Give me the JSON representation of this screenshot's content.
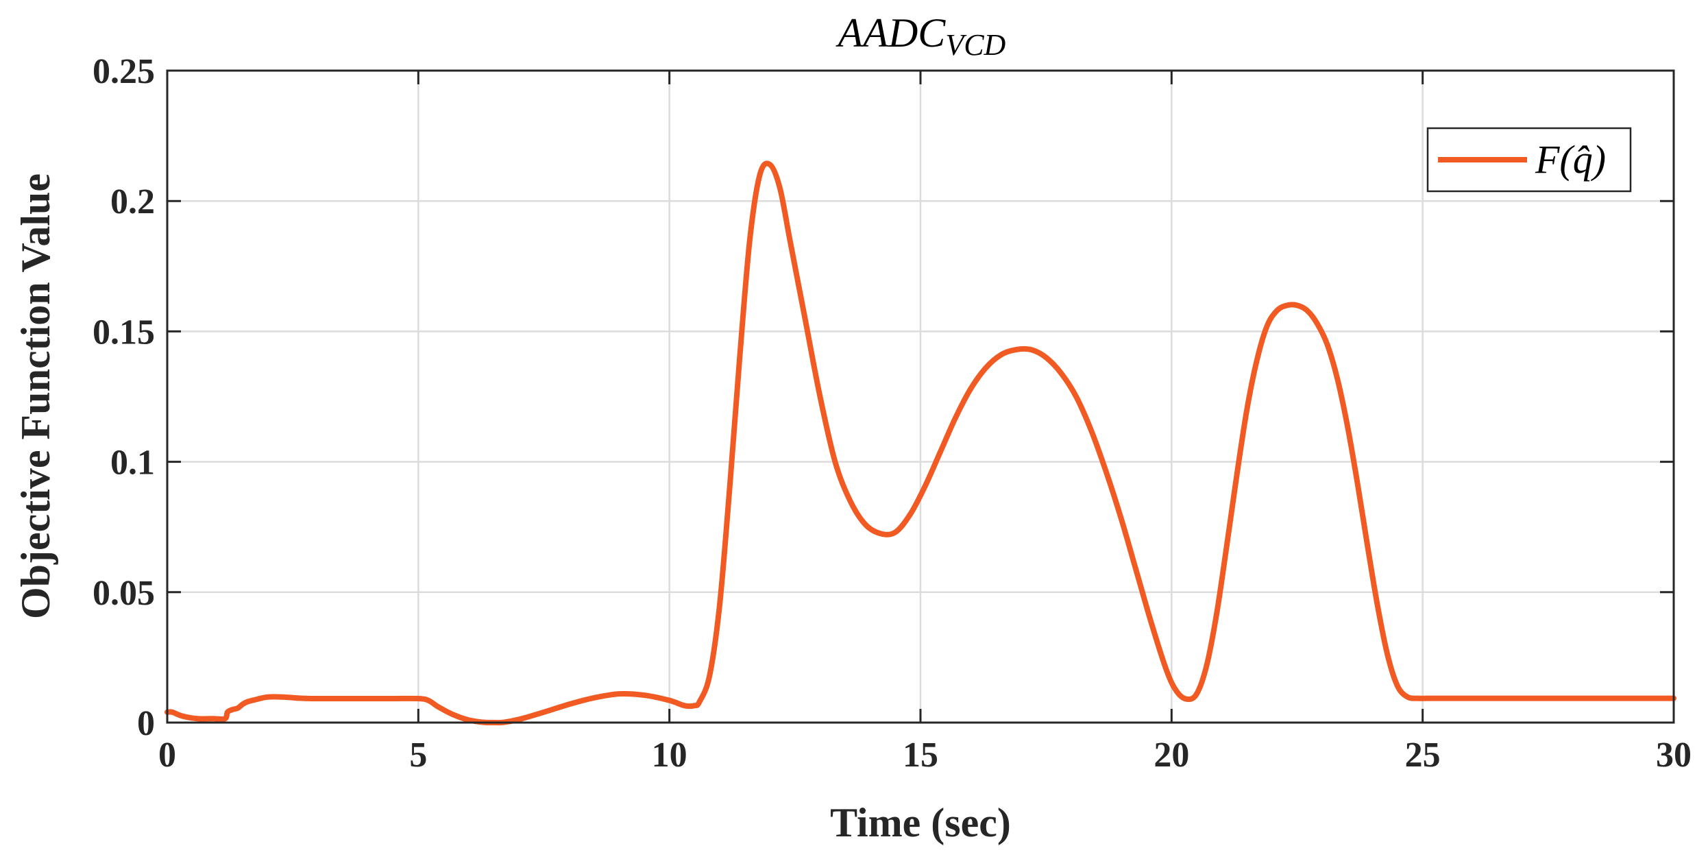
{
  "chart_data": {
    "type": "line",
    "title": "AADC",
    "title_subscript": "VCD",
    "xlabel": "Time (sec)",
    "ylabel": "Objective Function Value",
    "xlim": [
      0,
      30
    ],
    "ylim": [
      0,
      0.25
    ],
    "xticks": [
      0,
      5,
      10,
      15,
      20,
      25,
      30
    ],
    "yticks": [
      0,
      0.05,
      0.1,
      0.15,
      0.2,
      0.25
    ],
    "xtick_labels": [
      "0",
      "5",
      "10",
      "15",
      "20",
      "25",
      "30"
    ],
    "ytick_labels": [
      "0",
      "0.05",
      "0.1",
      "0.15",
      "0.2",
      "0.25"
    ],
    "grid": true,
    "legend_position": "top-right",
    "series": [
      {
        "name": "F(q̂)",
        "color": "#F15A22",
        "x": [
          0,
          0.1,
          0.3,
          0.6,
          0.9,
          1.15,
          1.2,
          1.3,
          1.4,
          1.5,
          1.6,
          1.8,
          2.0,
          2.3,
          2.7,
          3.0,
          3.5,
          4.0,
          4.5,
          5.0,
          5.2,
          5.4,
          5.7,
          6.0,
          6.3,
          6.5,
          6.7,
          7.0,
          7.5,
          8.0,
          8.5,
          9.0,
          9.5,
          10.0,
          10.3,
          10.5,
          10.6,
          10.8,
          11.0,
          11.2,
          11.4,
          11.6,
          11.8,
          12.0,
          12.2,
          12.4,
          12.7,
          13.0,
          13.3,
          13.6,
          13.9,
          14.2,
          14.5,
          14.8,
          15.1,
          15.4,
          15.7,
          16.0,
          16.3,
          16.6,
          16.9,
          17.2,
          17.5,
          17.8,
          18.1,
          18.4,
          18.7,
          19.0,
          19.3,
          19.6,
          19.9,
          20.1,
          20.3,
          20.5,
          20.7,
          20.9,
          21.1,
          21.3,
          21.5,
          21.7,
          21.9,
          22.1,
          22.3,
          22.5,
          22.7,
          22.9,
          23.1,
          23.3,
          23.5,
          23.7,
          23.9,
          24.1,
          24.3,
          24.5,
          24.7,
          24.9,
          25.1,
          25.3,
          25.6,
          26.0,
          27.0,
          28.0,
          29.0,
          30.0
        ],
        "y": [
          0.004,
          0.004,
          0.0025,
          0.0015,
          0.0015,
          0.0015,
          0.004,
          0.005,
          0.0055,
          0.007,
          0.008,
          0.009,
          0.0098,
          0.0098,
          0.0093,
          0.0092,
          0.0092,
          0.0092,
          0.0092,
          0.0092,
          0.0085,
          0.006,
          0.003,
          0.001,
          0.0001,
          0.0,
          0.0001,
          0.0012,
          0.004,
          0.007,
          0.0095,
          0.011,
          0.0105,
          0.0085,
          0.0065,
          0.0065,
          0.008,
          0.018,
          0.045,
          0.09,
          0.14,
          0.185,
          0.21,
          0.214,
          0.205,
          0.185,
          0.155,
          0.125,
          0.1,
          0.085,
          0.076,
          0.0725,
          0.073,
          0.08,
          0.091,
          0.104,
          0.117,
          0.128,
          0.136,
          0.141,
          0.143,
          0.143,
          0.14,
          0.134,
          0.125,
          0.112,
          0.096,
          0.078,
          0.058,
          0.038,
          0.02,
          0.012,
          0.009,
          0.011,
          0.022,
          0.042,
          0.068,
          0.095,
          0.12,
          0.139,
          0.152,
          0.158,
          0.16,
          0.16,
          0.158,
          0.153,
          0.145,
          0.132,
          0.114,
          0.092,
          0.068,
          0.045,
          0.026,
          0.014,
          0.0098,
          0.0093,
          0.0093,
          0.0093,
          0.0093,
          0.0093,
          0.0093,
          0.0093,
          0.0093,
          0.0093
        ]
      }
    ]
  }
}
